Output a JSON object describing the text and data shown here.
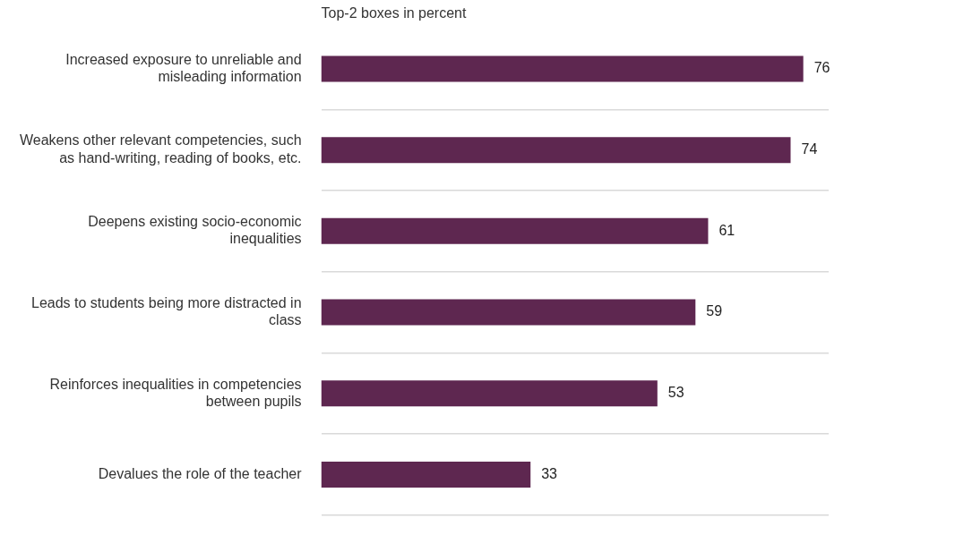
{
  "chart_data": {
    "type": "bar",
    "orientation": "horizontal",
    "title": "Top-2 boxes in percent",
    "categories": [
      "Increased exposure to unreliable and misleading information",
      "Weakens other relevant competencies, such as hand-writing, reading of books, etc.",
      "Deepens existing socio-economic inequalities",
      "Leads to students being more distracted in class",
      "Reinforces inequalities in competencies between pupils",
      "Devalues the role of the teacher"
    ],
    "values": [
      76,
      74,
      61,
      59,
      53,
      33
    ],
    "color": "#5e2750",
    "data_labels": true,
    "grid": "y",
    "legend": false
  }
}
